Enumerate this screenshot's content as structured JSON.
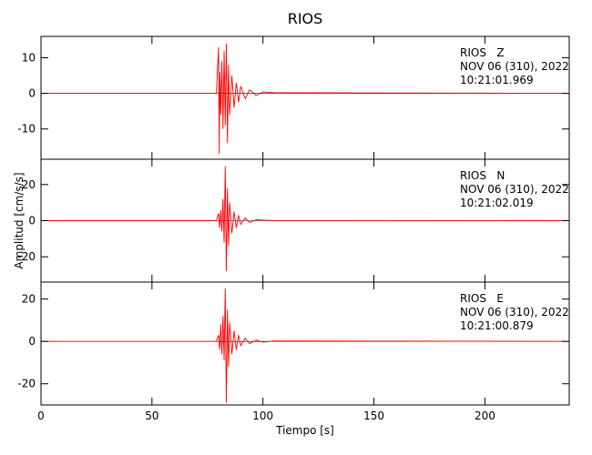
{
  "chart_data": [
    {
      "type": "line",
      "title": "RIOS",
      "annotations": [
        "RIOS   Z",
        "NOV 06 (310), 2022",
        "10:21:01.969"
      ],
      "xlim": [
        0,
        238
      ],
      "ylim": [
        -18.5,
        16
      ],
      "yticks": [
        -10,
        0,
        10
      ],
      "series": [
        {
          "color": "#ff0000",
          "x": [
            0,
            79,
            80,
            80.3,
            80.6,
            81,
            81.5,
            82,
            82.5,
            83,
            83.5,
            84,
            84.5,
            85,
            86,
            87,
            88,
            89,
            90,
            92,
            94,
            97,
            100,
            105,
            238
          ],
          "values": [
            0,
            0,
            13,
            -17,
            6,
            -6,
            9,
            -10,
            12,
            -9,
            14,
            -14,
            8,
            -6,
            5,
            -4,
            3,
            -2.5,
            2,
            -1.5,
            1,
            -0.6,
            0.4,
            0.2,
            0
          ]
        }
      ]
    },
    {
      "type": "line",
      "ylabel": "Amplitud [cm/s/s]",
      "annotations": [
        "RIOS   N",
        "NOV 06 (310), 2022",
        "10:21:02.019"
      ],
      "xlim": [
        0,
        238
      ],
      "ylim": [
        -34,
        34
      ],
      "yticks": [
        -20,
        0,
        20
      ],
      "series": [
        {
          "color": "#ff0000",
          "x": [
            0,
            79,
            80,
            80.5,
            81,
            81.5,
            82,
            82.5,
            83,
            83.5,
            84,
            84.5,
            85,
            86,
            87,
            88,
            89,
            90,
            92,
            94,
            97,
            100,
            105,
            238
          ],
          "values": [
            0,
            0,
            4,
            -4,
            6,
            -6,
            12,
            -12,
            30,
            -28,
            18,
            -14,
            10,
            -7,
            5,
            -4,
            3,
            -2,
            1.5,
            -1,
            0.5,
            0.3,
            0.1,
            0
          ]
        }
      ]
    },
    {
      "type": "line",
      "xlabel": "Tiempo [s]",
      "annotations": [
        "RIOS   E",
        "NOV 06 (310), 2022",
        "10:21:00.879"
      ],
      "xlim": [
        0,
        238
      ],
      "xticks": [
        0,
        50,
        100,
        150,
        200
      ],
      "ylim": [
        -30,
        28
      ],
      "yticks": [
        -20,
        0,
        20
      ],
      "series": [
        {
          "color": "#ff0000",
          "x": [
            0,
            79,
            80,
            80.5,
            81,
            81.5,
            82,
            82.5,
            83,
            83.5,
            84,
            84.5,
            85,
            86,
            87,
            88,
            89,
            90,
            92,
            94,
            97,
            100,
            105,
            238
          ],
          "values": [
            0,
            0,
            3,
            -4,
            8,
            -6,
            12,
            -9,
            25,
            -29,
            15,
            -12,
            9,
            -6,
            5,
            -4,
            3,
            -2,
            1.5,
            -1,
            0.6,
            -0.3,
            0.2,
            0
          ]
        }
      ]
    }
  ]
}
